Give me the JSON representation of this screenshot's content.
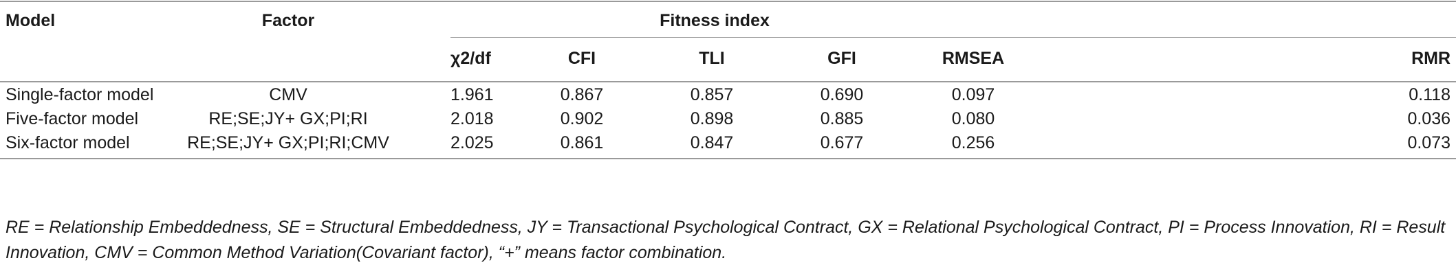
{
  "header": {
    "model": "Model",
    "factor": "Factor",
    "fitness_index": "Fitness index",
    "columns": [
      "χ2/df",
      "CFI",
      "TLI",
      "GFI",
      "RMSEA",
      "RMR"
    ]
  },
  "rows": [
    {
      "model": "Single-factor model",
      "factor": "CMV",
      "values": [
        "1.961",
        "0.867",
        "0.857",
        "0.690",
        "0.097",
        "0.118"
      ]
    },
    {
      "model": "Five-factor model",
      "factor": "RE;SE;JY+ GX;PI;RI",
      "values": [
        "2.018",
        "0.902",
        "0.898",
        "0.885",
        "0.080",
        "0.036"
      ]
    },
    {
      "model": "Six-factor model",
      "factor": "RE;SE;JY+ GX;PI;RI;CMV",
      "values": [
        "2.025",
        "0.861",
        "0.847",
        "0.677",
        "0.256",
        "0.073"
      ]
    }
  ],
  "footnote": "RE = Relationship Embeddedness, SE = Structural Embeddedness, JY =  Transactional Psychological Contract, GX =  Relational Psychological Contract, PI = Process Innovation, RI =  Result Innovation, CMV =  Common Method Variation(Covariant factor), “+” means factor combination."
}
